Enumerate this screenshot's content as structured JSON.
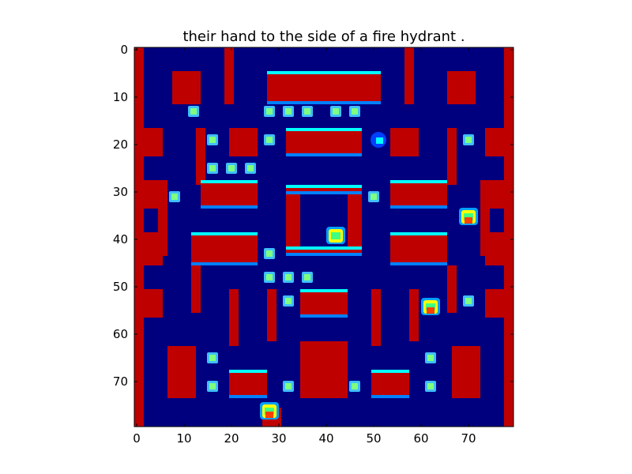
{
  "figure": {
    "title": "their hand to the side of a fire hydrant ."
  },
  "axes": {
    "x_ticks": [
      "0",
      "10",
      "20",
      "30",
      "40",
      "50",
      "60",
      "70"
    ],
    "y_ticks": [
      "0",
      "10",
      "20",
      "30",
      "40",
      "50",
      "60",
      "70"
    ]
  },
  "colors": {
    "background": "#00007f",
    "wall": "#bf0000",
    "wall_edge_top": "#00ffff",
    "wall_edge_bottom": "#0080ff",
    "wall_edge_warm": "#ffcc00",
    "pellet": "#7fff7f",
    "pellet_outer": "#3fbfff"
  },
  "game": {
    "grid_size": [
      80,
      80
    ],
    "walls": [
      [
        0,
        0,
        2,
        80
      ],
      [
        78,
        0,
        2,
        80
      ],
      [
        8,
        5,
        6,
        7
      ],
      [
        19,
        0,
        2,
        12
      ],
      [
        28,
        5,
        24,
        7
      ],
      [
        57,
        0,
        2,
        12
      ],
      [
        66,
        5,
        6,
        7
      ],
      [
        0,
        17,
        6,
        6
      ],
      [
        20,
        17,
        6,
        6
      ],
      [
        32,
        17,
        16,
        6
      ],
      [
        54,
        17,
        6,
        6
      ],
      [
        74,
        17,
        6,
        6
      ],
      [
        13,
        17,
        2,
        12
      ],
      [
        66,
        17,
        2,
        12
      ],
      [
        5,
        28,
        2,
        16
      ],
      [
        14,
        28,
        12,
        6
      ],
      [
        54,
        28,
        12,
        6
      ],
      [
        73,
        28,
        2,
        16
      ],
      [
        0,
        28,
        5,
        6
      ],
      [
        75,
        28,
        5,
        6
      ],
      [
        32,
        29,
        3,
        15
      ],
      [
        45,
        29,
        3,
        15
      ],
      [
        32,
        29,
        16,
        2
      ],
      [
        32,
        42,
        16,
        2
      ],
      [
        0,
        39,
        6,
        7
      ],
      [
        12,
        39,
        14,
        7
      ],
      [
        54,
        39,
        12,
        7
      ],
      [
        74,
        39,
        6,
        7
      ],
      [
        12,
        46,
        2,
        10
      ],
      [
        66,
        46,
        2,
        10
      ],
      [
        0,
        51,
        6,
        6
      ],
      [
        20,
        51,
        2,
        12
      ],
      [
        28,
        51,
        2,
        11
      ],
      [
        35,
        51,
        10,
        6
      ],
      [
        50,
        51,
        2,
        12
      ],
      [
        58,
        51,
        2,
        11
      ],
      [
        74,
        51,
        6,
        6
      ],
      [
        35,
        62,
        10,
        12
      ],
      [
        7,
        63,
        6,
        11
      ],
      [
        20,
        68,
        8,
        6
      ],
      [
        50,
        68,
        8,
        6
      ],
      [
        67,
        63,
        6,
        11
      ],
      [
        27,
        76,
        4,
        4
      ]
    ],
    "pellets": [
      [
        12,
        13
      ],
      [
        28,
        13
      ],
      [
        32,
        13
      ],
      [
        36,
        13
      ],
      [
        42,
        13
      ],
      [
        46,
        13
      ],
      [
        16,
        19
      ],
      [
        28,
        19
      ],
      [
        70,
        19
      ],
      [
        16,
        25
      ],
      [
        20,
        25
      ],
      [
        24,
        25
      ],
      [
        8,
        31
      ],
      [
        50,
        31
      ],
      [
        28,
        43
      ],
      [
        28,
        48
      ],
      [
        32,
        48
      ],
      [
        36,
        48
      ],
      [
        32,
        53
      ],
      [
        70,
        53
      ],
      [
        16,
        65
      ],
      [
        62,
        65
      ],
      [
        16,
        71
      ],
      [
        32,
        71
      ],
      [
        46,
        71
      ],
      [
        62,
        71
      ]
    ],
    "sprites": [
      {
        "name": "player",
        "cell": [
          51,
          19
        ]
      },
      {
        "name": "ghost-center",
        "cell": [
          42,
          39
        ]
      },
      {
        "name": "ghost-right",
        "cell": [
          70,
          35
        ]
      },
      {
        "name": "ghost-lower-right",
        "cell": [
          62,
          54
        ]
      },
      {
        "name": "ghost-bottom",
        "cell": [
          28,
          76
        ]
      }
    ]
  }
}
